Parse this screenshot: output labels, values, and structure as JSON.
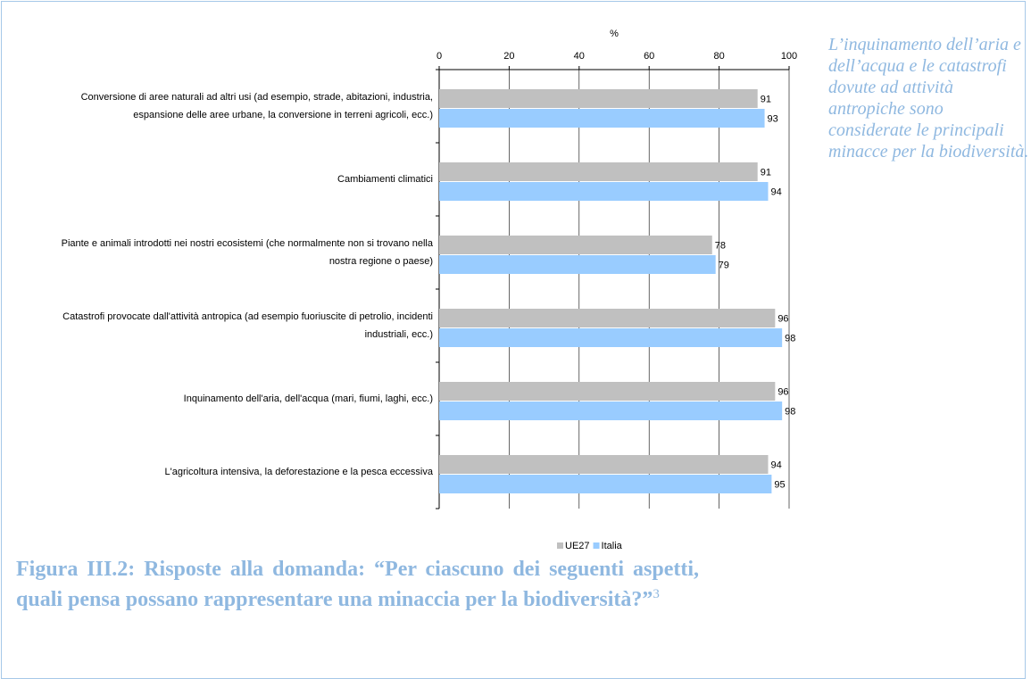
{
  "chart_data": {
    "type": "bar",
    "orientation": "horizontal",
    "x_axis_label": "%",
    "categories": [
      "Conversione di aree naturali ad altri usi (ad esempio, strade, abitazioni, industria, espansione delle aree urbane, la conversione in terreni agricoli, ecc.)",
      "Cambiamenti climatici",
      "Piante e animali introdotti nei nostri ecosistemi (che normalmente non si trovano nella nostra regione o paese)",
      "Catastrofi provocate dall'attività antropica (ad esempio fuoriuscite di petrolio, incidenti industriali, ecc.)",
      "Inquinamento dell'aria, dell'acqua (mari, fiumi, laghi, ecc.)",
      "L'agricoltura intensiva, la deforestazione e la pesca eccessiva"
    ],
    "series": [
      {
        "name": "UE27",
        "color": "#c0c0c0",
        "values": [
          91,
          91,
          78,
          96,
          96,
          94
        ]
      },
      {
        "name": "Italia",
        "color": "#99ccff",
        "values": [
          93,
          94,
          79,
          98,
          98,
          95
        ]
      }
    ],
    "xlim": [
      0,
      100
    ],
    "xticks": [
      0,
      20,
      40,
      60,
      80,
      100
    ],
    "grid": true,
    "legend": "bottom"
  },
  "side_note": "L’inquinamento dell’aria e dell’acqua e le catastrofi dovute ad attività antropiche sono considerate le principali minacce per la biodiversità.",
  "caption": {
    "text": "Figura III.2: Risposte alla domanda: “Per ciascuno dei seguenti aspetti, quali pensa possano rappresentare una minaccia per la biodiversità?”",
    "footnote": "3"
  }
}
